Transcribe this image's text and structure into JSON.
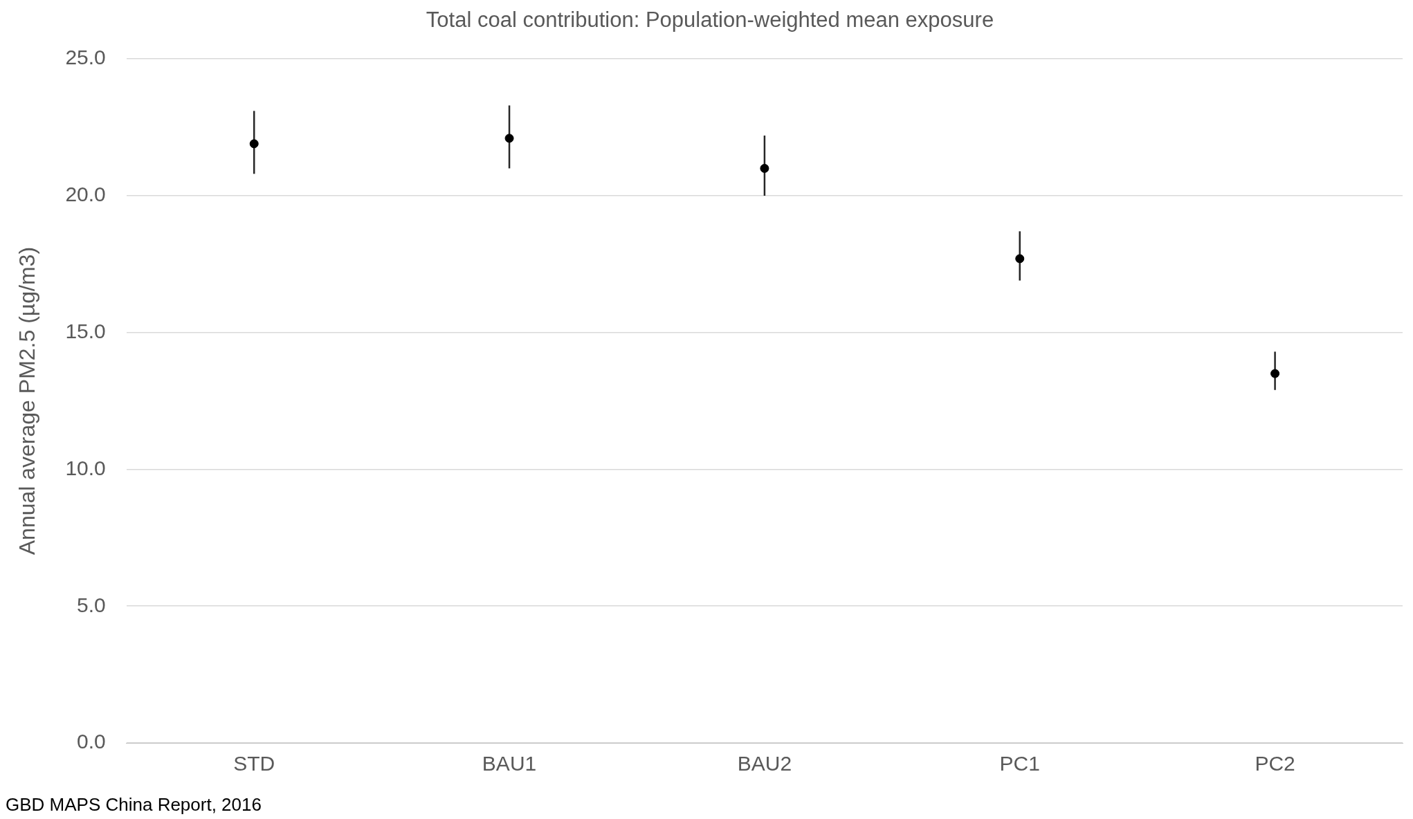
{
  "chart_data": {
    "type": "scatter",
    "title": "Total coal contribution: Population-weighted mean exposure",
    "ylabel": "Annual average PM2.5 (µg/m3)",
    "categories": [
      "STD",
      "BAU1",
      "BAU2",
      "PC1",
      "PC2"
    ],
    "values": [
      21.9,
      22.1,
      21.0,
      17.7,
      13.5
    ],
    "color": "#000000",
    "errors": [
      [
        20.8,
        23.1
      ],
      [
        21.0,
        23.3
      ],
      [
        20.0,
        22.2
      ],
      [
        16.9,
        18.7
      ],
      [
        12.9,
        14.3
      ]
    ],
    "ylim": [
      0,
      25
    ],
    "yticks": [
      {
        "value": 0,
        "label": "0.0"
      },
      {
        "value": 5,
        "label": "5.0"
      },
      {
        "value": 10,
        "label": "10.0"
      },
      {
        "value": 15,
        "label": "15.0"
      },
      {
        "value": 20,
        "label": "20.0"
      },
      {
        "value": 25,
        "label": "25.0"
      }
    ],
    "grid": "y",
    "marker": "circle",
    "annotations": [
      "GBD MAPS China Report, 2016"
    ]
  }
}
